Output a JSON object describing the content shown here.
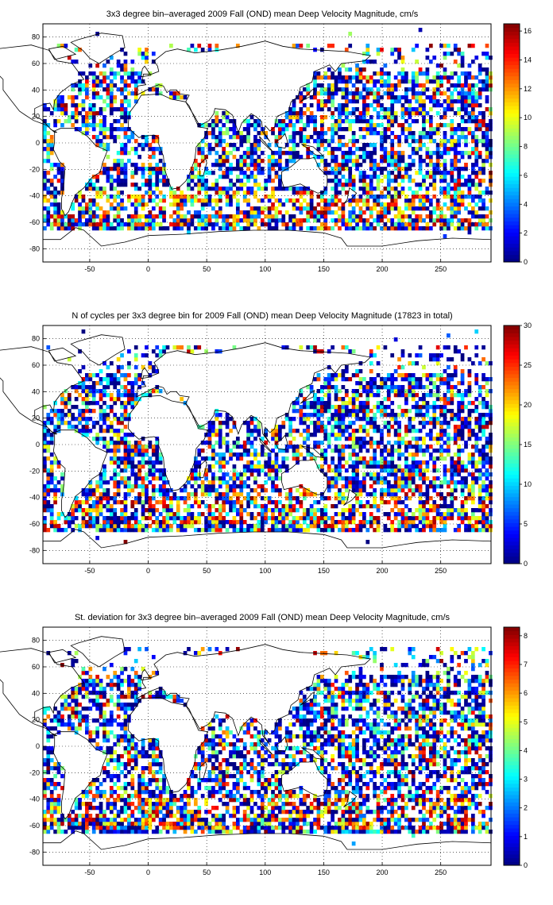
{
  "chart_data": [
    {
      "type": "heatmap",
      "title": "3x3 degree bin–averaged 2009 Fall (OND) mean Deep Velocity Magnitude, cm/s",
      "xlim": [
        -90,
        293
      ],
      "ylim": [
        -90,
        90
      ],
      "xticks": [
        -50,
        0,
        50,
        100,
        150,
        200,
        250
      ],
      "yticks": [
        80,
        60,
        40,
        20,
        0,
        -20,
        -40,
        -60,
        -80
      ],
      "xtick_labels": [
        "-50",
        "0",
        "50",
        "100",
        "150",
        "200",
        "250"
      ],
      "ytick_labels": [
        "80",
        "60",
        "40",
        "20",
        "0",
        "-20",
        "-40",
        "-60",
        "-80"
      ],
      "colorbar": {
        "min": 0,
        "max": 16.5,
        "ticks": [
          0,
          2,
          4,
          6,
          8,
          10,
          12,
          14,
          16
        ],
        "tick_labels": [
          "0",
          "2",
          "4",
          "6",
          "8",
          "10",
          "12",
          "14",
          "16"
        ],
        "colormap": "jet"
      },
      "grid": true,
      "bin_size_deg": 3,
      "seed": 11,
      "scale": 1.0
    },
    {
      "type": "heatmap",
      "title": "N of cycles per 3x3 degree bin for 2009 Fall (OND) mean Deep Velocity Magnitude (17823 in total)",
      "xlim": [
        -90,
        293
      ],
      "ylim": [
        -90,
        90
      ],
      "xticks": [
        -50,
        0,
        50,
        100,
        150,
        200,
        250
      ],
      "yticks": [
        80,
        60,
        40,
        20,
        0,
        -20,
        -40,
        -60,
        -80
      ],
      "xtick_labels": [
        "-50",
        "0",
        "50",
        "100",
        "150",
        "200",
        "250"
      ],
      "ytick_labels": [
        "80",
        "60",
        "40",
        "20",
        "0",
        "-20",
        "-40",
        "-60",
        "-80"
      ],
      "colorbar": {
        "min": 0,
        "max": 30,
        "ticks": [
          0,
          5,
          10,
          15,
          20,
          25,
          30
        ],
        "tick_labels": [
          "0",
          "5",
          "10",
          "15",
          "20",
          "25",
          "30"
        ],
        "colormap": "jet"
      },
      "grid": true,
      "bin_size_deg": 3,
      "seed": 23,
      "scale": 1.0
    },
    {
      "type": "heatmap",
      "title": "St. deviation for 3x3 degree bin–averaged 2009 Fall (OND) mean Deep Velocity Magnitude, cm/s",
      "xlim": [
        -90,
        293
      ],
      "ylim": [
        -90,
        90
      ],
      "xticks": [
        -50,
        0,
        50,
        100,
        150,
        200,
        250
      ],
      "yticks": [
        80,
        60,
        40,
        20,
        0,
        -20,
        -40,
        -60,
        -80
      ],
      "xtick_labels": [
        "-50",
        "0",
        "50",
        "100",
        "150",
        "200",
        "250"
      ],
      "ytick_labels": [
        "80",
        "60",
        "40",
        "20",
        "0",
        "-20",
        "-40",
        "-60",
        "-80"
      ],
      "colorbar": {
        "min": 0,
        "max": 8.3,
        "ticks": [
          0,
          1,
          2,
          3,
          4,
          5,
          6,
          7,
          8
        ],
        "tick_labels": [
          "0",
          "1",
          "2",
          "3",
          "4",
          "5",
          "6",
          "7",
          "8"
        ],
        "colormap": "jet"
      },
      "grid": true,
      "bin_size_deg": 3,
      "seed": 37,
      "scale": 1.0
    }
  ]
}
